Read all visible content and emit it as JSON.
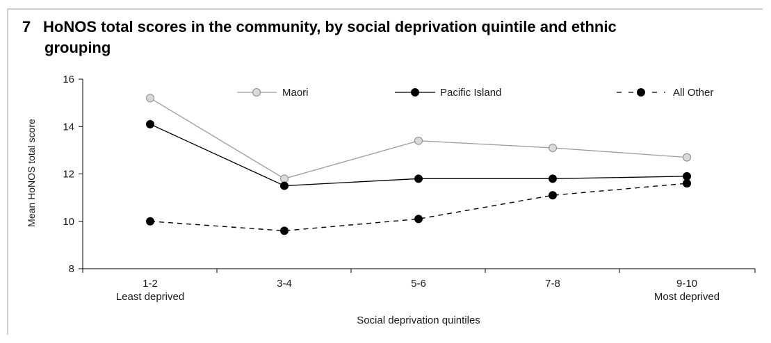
{
  "chart_data": {
    "type": "line",
    "title_number": "7",
    "title": "HoNOS total scores in the community, by social deprivation quintile and ethnic grouping",
    "title_line1": "HoNOS total scores in the community, by social deprivation quintile and ethnic",
    "title_line2": "grouping",
    "xlabel": "Social deprivation quintiles",
    "ylabel": "Mean HoNOS total score",
    "categories": [
      "1-2",
      "3-4",
      "5-6",
      "7-8",
      "9-10"
    ],
    "category_sublabels": [
      "Least deprived",
      "",
      "",
      "",
      "Most deprived"
    ],
    "ylim": [
      8,
      16
    ],
    "yticks": [
      8,
      10,
      12,
      14,
      16
    ],
    "grid": false,
    "legend_position": "top",
    "series": [
      {
        "name": "Maori",
        "values": [
          15.2,
          11.8,
          13.4,
          13.1,
          12.7
        ],
        "color": "#9a9a9a",
        "marker_fill": "#d9d9d9",
        "line_style": "solid"
      },
      {
        "name": "Pacific Island",
        "values": [
          14.1,
          11.5,
          11.8,
          11.8,
          11.9
        ],
        "color": "#000000",
        "marker_fill": "#000000",
        "line_style": "solid"
      },
      {
        "name": "All Other",
        "values": [
          10.0,
          9.6,
          10.1,
          11.1,
          11.6
        ],
        "color": "#000000",
        "marker_fill": "#000000",
        "line_style": "dashed"
      }
    ]
  }
}
